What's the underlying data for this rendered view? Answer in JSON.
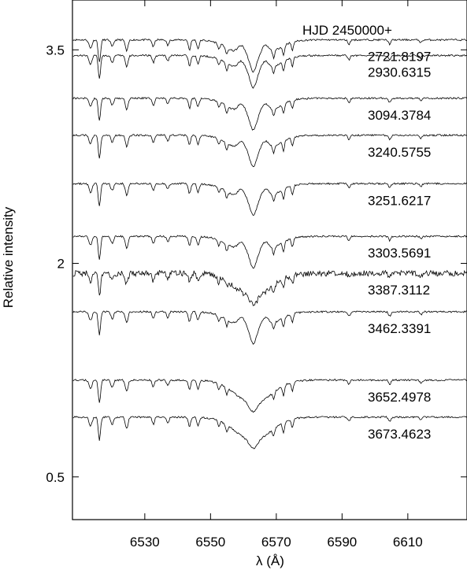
{
  "chart_data": {
    "type": "line",
    "title": "",
    "xlabel": "λ (Å)",
    "ylabel": "Relative intensity",
    "xlim": [
      6508,
      6628
    ],
    "ylim": [
      0.2,
      3.85
    ],
    "x_ticks": [
      6530,
      6550,
      6570,
      6590,
      6610
    ],
    "y_ticks": [
      {
        "value": 0.5,
        "label": "0.5"
      },
      {
        "value": 2,
        "label": "2"
      },
      {
        "value": 3.5,
        "label": "3.5"
      }
    ],
    "grid": false,
    "legend": "none",
    "header": "HJD 2450000+",
    "line_color": "#000000",
    "series": [
      {
        "label": "2721.8197",
        "offset": 3.57,
        "double_peak": true
      },
      {
        "label": "2930.6315",
        "offset": 3.46,
        "double_peak": true
      },
      {
        "label": "3094.3784",
        "offset": 3.16,
        "double_peak": true
      },
      {
        "label": "3240.5755",
        "offset": 2.9,
        "double_peak": true
      },
      {
        "label": "3251.6217",
        "offset": 2.56,
        "double_peak": true
      },
      {
        "label": "3303.5691",
        "offset": 2.19,
        "double_peak": true
      },
      {
        "label": "3387.3112",
        "offset": 1.93,
        "double_peak": false
      },
      {
        "label": "3462.3391",
        "offset": 1.66,
        "double_peak": true
      },
      {
        "label": "3652.4978",
        "offset": 1.18,
        "double_peak": false
      },
      {
        "label": "3673.4623",
        "offset": 0.92,
        "double_peak": false
      }
    ]
  }
}
